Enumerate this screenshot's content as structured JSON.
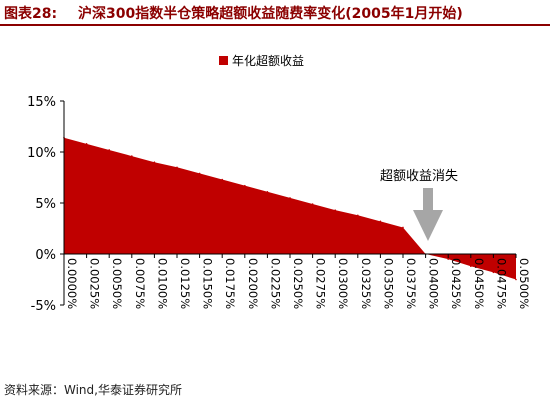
{
  "figure": {
    "number": "图表28:",
    "title": "沪深300指数半仓策略超额收益随费率变化(2005年1月开始)",
    "source": "资料来源：Wind,华泰证券研究所"
  },
  "colors": {
    "accent": "#8b0000",
    "area": "#c00000",
    "arrow": "#a6a6a6"
  },
  "chart_data": {
    "type": "area",
    "x": [
      "0.0000%",
      "0.0025%",
      "0.0050%",
      "0.0075%",
      "0.0100%",
      "0.0125%",
      "0.0150%",
      "0.0175%",
      "0.0200%",
      "0.0225%",
      "0.0250%",
      "0.0275%",
      "0.0300%",
      "0.0325%",
      "0.0350%",
      "0.0375%",
      "0.0400%",
      "0.0425%",
      "0.0450%",
      "0.0475%",
      "0.0500%"
    ],
    "series": [
      {
        "name": "年化超额收益",
        "values": [
          11.4,
          10.8,
          10.2,
          9.6,
          9.0,
          8.5,
          7.9,
          7.3,
          6.7,
          6.1,
          5.5,
          4.9,
          4.3,
          3.8,
          3.2,
          2.6,
          0.0,
          -0.5,
          -1.2,
          -1.8,
          -2.5
        ]
      }
    ],
    "yticks": [
      "15%",
      "10%",
      "5%",
      "0%",
      "-5%"
    ],
    "ylim": [
      -5,
      15
    ],
    "annotation": "超额收益消失",
    "legend_position": "top-center",
    "grid": false
  }
}
